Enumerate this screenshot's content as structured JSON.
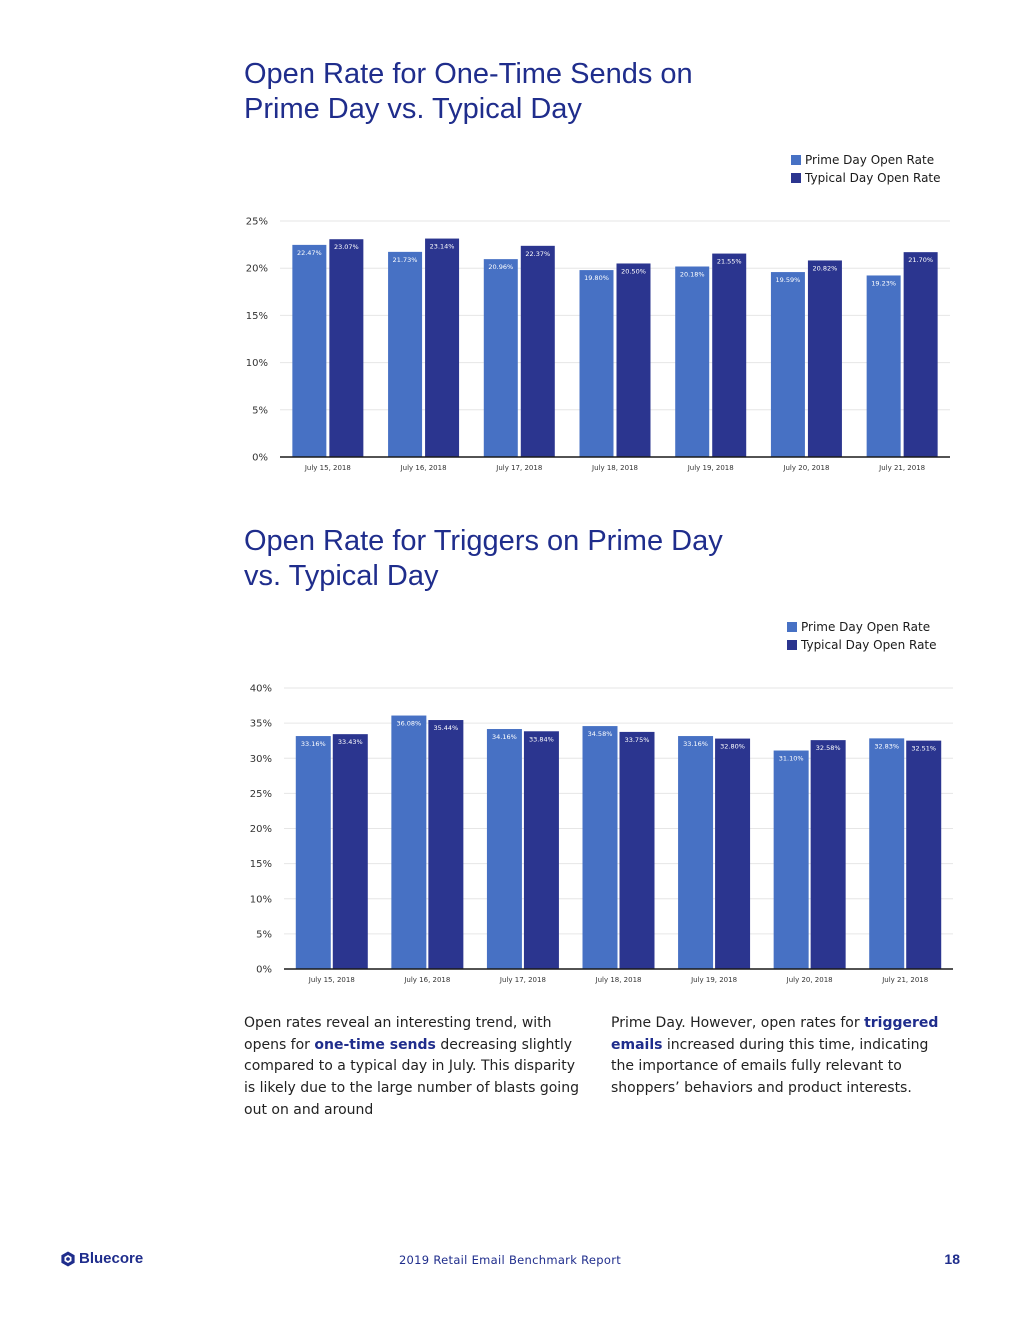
{
  "colors": {
    "prime": "#4771c4",
    "typical": "#2b358f",
    "title": "#1f2d8c",
    "grid": "#e6e6e6"
  },
  "chart_data": [
    {
      "type": "bar",
      "title": "Open Rate for One-Time Sends on Prime Day vs. Typical Day",
      "title_lines": [
        "Open Rate for One-Time Sends on",
        "Prime Day vs. Typical Day"
      ],
      "categories": [
        "July 15, 2018",
        "July 16, 2018",
        "July 17, 2018",
        "July 18, 2018",
        "July 19, 2018",
        "July 20, 2018",
        "July 21, 2018"
      ],
      "series": [
        {
          "name": "Prime Day Open Rate",
          "values": [
            22.47,
            21.73,
            20.96,
            19.8,
            20.18,
            19.59,
            19.23
          ],
          "labels": [
            "22.47%",
            "21.73%",
            "20.96%",
            "19.80%",
            "20.18%",
            "19.59%",
            "19.23%"
          ]
        },
        {
          "name": "Typical Day Open Rate",
          "values": [
            23.07,
            23.14,
            22.37,
            20.5,
            21.55,
            20.82,
            21.7
          ],
          "labels": [
            "23.07%",
            "23.14%",
            "22.37%",
            "20.50%",
            "21.55%",
            "20.82%",
            "21.70%"
          ]
        }
      ],
      "ylim": [
        0,
        25
      ],
      "yticks": [
        "0%",
        "5%",
        "10%",
        "15%",
        "20%",
        "25%"
      ],
      "xlabel": "",
      "ylabel": "",
      "grid": true,
      "legend": "top-right"
    },
    {
      "type": "bar",
      "title": "Open Rate for Triggers on Prime Day vs. Typical Day",
      "title_lines": [
        "Open Rate for Triggers on Prime Day",
        "vs. Typical Day"
      ],
      "categories": [
        "July 15, 2018",
        "July 16, 2018",
        "July 17, 2018",
        "July 18, 2018",
        "July 19, 2018",
        "July 20, 2018",
        "July 21, 2018"
      ],
      "series": [
        {
          "name": "Prime Day Open Rate",
          "values": [
            33.16,
            36.08,
            34.16,
            34.58,
            33.16,
            31.1,
            32.83
          ],
          "labels": [
            "33.16%",
            "36.08%",
            "34.16%",
            "34.58%",
            "33.16%",
            "31.10%",
            "32.83%"
          ]
        },
        {
          "name": "Typical Day Open Rate",
          "values": [
            33.43,
            35.44,
            33.84,
            33.75,
            32.8,
            32.58,
            32.51
          ],
          "labels": [
            "33.43%",
            "35.44%",
            "33.84%",
            "33.75%",
            "32.80%",
            "32.58%",
            "32.51%"
          ]
        }
      ],
      "ylim": [
        0,
        40
      ],
      "yticks": [
        "0%",
        "5%",
        "10%",
        "15%",
        "20%",
        "25%",
        "30%",
        "35%",
        "40%"
      ],
      "xlabel": "",
      "ylabel": "",
      "grid": true,
      "legend": "top-right"
    }
  ],
  "body": {
    "col1": {
      "t1": "Open rates reveal an interesting trend, with opens for ",
      "h1": "one-time sends",
      "t2": " decreasing slightly compared to a typical day in July. This disparity is likely due to the large number of blasts going out on and around"
    },
    "col2": {
      "t1": "Prime Day. However, open rates for ",
      "h1": "triggered emails",
      "t2": " increased during this time, indicating the importance of emails fully relevant to shoppers’ behaviors and product interests."
    }
  },
  "footer": {
    "logo": "Bluecore",
    "logo_icon": "bluecore-logo-icon",
    "report": "2019 Retail Email Benchmark Report",
    "page": "18"
  }
}
